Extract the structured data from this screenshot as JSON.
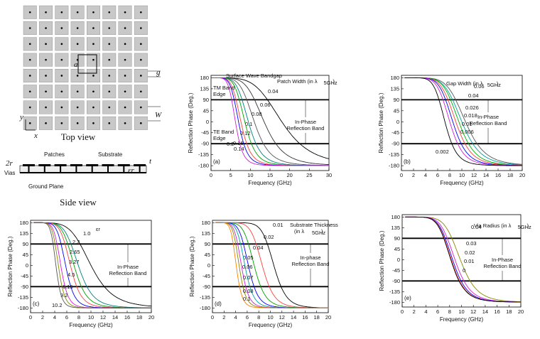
{
  "left_panel": {
    "top_view_caption": "Top view",
    "side_view_caption": "Side view",
    "grid_rows": 8,
    "grid_cols": 8,
    "dim_labels": {
      "a": "a",
      "g": "g",
      "W": "W",
      "y": "y",
      "x": "x",
      "r": "2r",
      "t": "t",
      "er": "εr"
    },
    "side_labels": {
      "patches": "Patches",
      "substrate": "Substrate",
      "vias": "Vias",
      "ground": "Ground Plane"
    }
  },
  "charts_common": {
    "ylabel": "Reflection Phase (Deg.)",
    "xlabel": "Frequency (GHz)",
    "yticks": [
      180,
      135,
      90,
      45,
      0,
      -45,
      -90,
      -135,
      -180
    ],
    "ylim": [
      -200,
      190
    ],
    "band_lines": [
      90,
      -90
    ]
  },
  "chart_data": [
    {
      "type": "line",
      "panel": "(a)",
      "xlim": [
        0,
        30
      ],
      "xticks": [
        0,
        5,
        10,
        15,
        20,
        25,
        30
      ],
      "param_label": "Patch Width (in λ",
      "param_sub": "5GHz",
      "param_close": ")",
      "band_label": [
        "In-Phase",
        "Reflection Band"
      ],
      "extra_labels": [
        "Surface Wave Bandgap",
        "TM Band",
        "Edge",
        "TE Band",
        "Edge"
      ],
      "series": [
        {
          "name": "0.04",
          "f0": 18.0,
          "k": 2.2,
          "color": "#000000"
        },
        {
          "name": "0.06",
          "f0": 13.5,
          "k": 2.5,
          "color": "#333333"
        },
        {
          "name": "0.08",
          "f0": 11.0,
          "k": 2.6,
          "color": "#555555"
        },
        {
          "name": "0.1",
          "f0": 9.5,
          "k": 2.7,
          "color": "#008080"
        },
        {
          "name": "0.12",
          "f0": 8.6,
          "k": 2.8,
          "color": "#00a000"
        },
        {
          "name": "0.14",
          "f0": 7.6,
          "k": 2.8,
          "color": "#ff4040"
        },
        {
          "name": "0.16",
          "f0": 7.0,
          "k": 2.9,
          "color": "#0000ff"
        },
        {
          "name": "0.2",
          "f0": 6.2,
          "k": 3.0,
          "color": "#d020d0"
        }
      ]
    },
    {
      "type": "line",
      "panel": "(b)",
      "xlim": [
        0,
        20
      ],
      "xticks": [
        0,
        2,
        4,
        6,
        8,
        10,
        12,
        14,
        16,
        18,
        20
      ],
      "param_label": "Gap Width (in λ",
      "param_sub": "5GHz",
      "param_close": ")",
      "band_label": [
        "In-Phase",
        "Reflection Band"
      ],
      "series": [
        {
          "name": "0.06",
          "f0": 10.6,
          "k": 3.0,
          "color": "#555555"
        },
        {
          "name": "0.04",
          "f0": 10.0,
          "k": 3.0,
          "color": "#00a0a0"
        },
        {
          "name": "0.026",
          "f0": 9.5,
          "k": 3.2,
          "color": "#00b000"
        },
        {
          "name": "0.018",
          "f0": 9.0,
          "k": 3.2,
          "color": "#ff4040"
        },
        {
          "name": "0.01",
          "f0": 8.5,
          "k": 3.3,
          "color": "#0000ff"
        },
        {
          "name": "0.006",
          "f0": 8.0,
          "k": 3.3,
          "color": "#d020d0"
        },
        {
          "name": "0.002",
          "f0": 7.2,
          "k": 3.4,
          "color": "#000000"
        }
      ]
    },
    {
      "type": "line",
      "panel": "(c)",
      "xlim": [
        0,
        20
      ],
      "xticks": [
        0,
        2,
        4,
        6,
        8,
        10,
        12,
        14,
        16,
        18,
        20
      ],
      "param_label": "εr",
      "param_sub": "",
      "param_close": "",
      "band_label": [
        "In-Phase",
        "Reflection Band"
      ],
      "series": [
        {
          "name": "1.0",
          "f0": 10.0,
          "k": 2.5,
          "color": "#000000"
        },
        {
          "name": "2.2",
          "f0": 7.9,
          "k": 3.0,
          "color": "#008080"
        },
        {
          "name": "2.65",
          "f0": 7.2,
          "k": 3.2,
          "color": "#00a000"
        },
        {
          "name": "3.27",
          "f0": 6.6,
          "k": 3.4,
          "color": "#ff4040"
        },
        {
          "name": "4.5",
          "f0": 5.8,
          "k": 3.6,
          "color": "#0000ff"
        },
        {
          "name": "6.15",
          "f0": 5.0,
          "k": 3.8,
          "color": "#d020d0"
        },
        {
          "name": "9.2",
          "f0": 4.6,
          "k": 4.0,
          "color": "#888800"
        },
        {
          "name": "10.2",
          "f0": 4.2,
          "k": 4.2,
          "color": "#555555"
        }
      ]
    },
    {
      "type": "line",
      "panel": "(d)",
      "xlim": [
        0,
        20
      ],
      "xticks": [
        0,
        2,
        4,
        6,
        8,
        10,
        12,
        14,
        16,
        18,
        20
      ],
      "param_label": "Substrate Thickness",
      "param_sub": "5GHz",
      "param_close": ")",
      "param_prefix2": "(in λ",
      "band_label": [
        "In-phase",
        "Reflection Band"
      ],
      "series": [
        {
          "name": "0.01",
          "f0": 10.6,
          "k": 4.5,
          "color": "#000000"
        },
        {
          "name": "0.02",
          "f0": 8.6,
          "k": 3.8,
          "color": "#ff4040"
        },
        {
          "name": "0.04",
          "f0": 7.2,
          "k": 3.4,
          "color": "#00a000"
        },
        {
          "name": "0.05",
          "f0": 6.2,
          "k": 3.4,
          "color": "#0000ff"
        },
        {
          "name": "0.06",
          "f0": 5.6,
          "k": 3.5,
          "color": "#00a0a0"
        },
        {
          "name": "0.07",
          "f0": 5.0,
          "k": 3.6,
          "color": "#d020d0"
        },
        {
          "name": "0.08",
          "f0": 4.6,
          "k": 3.7,
          "color": "#888800"
        },
        {
          "name": "0.1",
          "f0": 4.1,
          "k": 3.8,
          "color": "#ff8000"
        }
      ]
    },
    {
      "type": "line",
      "panel": "(e)",
      "xlim": [
        0,
        20
      ],
      "xticks": [
        0,
        2,
        4,
        6,
        8,
        10,
        12,
        14,
        16,
        18,
        20
      ],
      "param_label": "Via Radius (in λ",
      "param_sub": "5GHz",
      "param_close": ")",
      "band_label": [
        "In-Phase",
        "Reflection Band"
      ],
      "series": [
        {
          "name": "0.04",
          "f0": 9.8,
          "k": 3.2,
          "color": "#888800"
        },
        {
          "name": "0.03",
          "f0": 8.9,
          "k": 3.2,
          "color": "#d020d0"
        },
        {
          "name": "0.02",
          "f0": 8.5,
          "k": 3.2,
          "color": "#0000ff"
        },
        {
          "name": "0.01",
          "f0": 8.3,
          "k": 3.2,
          "color": "#ff4040"
        },
        {
          "name": "0",
          "f0": 8.2,
          "k": 3.2,
          "color": "#000000"
        }
      ]
    }
  ]
}
